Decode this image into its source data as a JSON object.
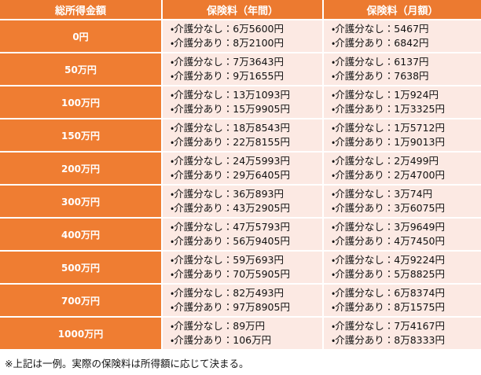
{
  "table": {
    "header": [
      "総所得金額",
      "保険料（年間）",
      "保険料（月額）"
    ],
    "rows": [
      [
        "0円",
        [
          "・介護分なし：6万5600円",
          "・介護分あり：8万2100円"
        ],
        [
          "・介護分なし：5467円",
          "・介護分あり：6842円"
        ]
      ],
      [
        "50万円",
        [
          "・介護分なし：7万3643円",
          "・介護分あり：9万1655円"
        ],
        [
          "・介護分なし：6137円",
          "・介護分あり：7638円"
        ]
      ],
      [
        "100万円",
        [
          "・介護分なし：13万1093円",
          "・介護分あり：15万9905円"
        ],
        [
          "・介護分なし：1万924円",
          "・介護分あり：1万3325円"
        ]
      ],
      [
        "150万円",
        [
          "・介護分なし：18万8543円",
          "・介護分あり：22万8155円"
        ],
        [
          "・介護分なし：1万5712円",
          "・介護分あり：1万9013円"
        ]
      ],
      [
        "200万円",
        [
          "・介護分なし：24万5993円",
          "・介護分あり：29万6405円"
        ],
        [
          "・介護分なし：2万499円",
          "・介護分あり：2万4700円"
        ]
      ],
      [
        "300万円",
        [
          "・介護分なし：36万893円",
          "・介護分あり：43万2905円"
        ],
        [
          "・介護分なし：3万74円",
          "・介護分あり：3万6075円"
        ]
      ],
      [
        "400万円",
        [
          "・介護分なし：47万5793円",
          "・介護分あり：56万9405円"
        ],
        [
          "・介護分なし：3万9649円",
          "・介護分あり：4万7450円"
        ]
      ],
      [
        "500万円",
        [
          "・介護分なし：59万693円",
          "・介護分あり：70万5905円"
        ],
        [
          "・介護分なし：4万9224円",
          "・介護分あり：5万8825円"
        ]
      ],
      [
        "700万円",
        [
          "・介護分なし：82万493円",
          "・介護分あり：97万8905円"
        ],
        [
          "・介護分なし：6万8374円",
          "・介護分あり：8万1575円"
        ]
      ],
      [
        "1000万円",
        [
          "・介護分なし：89万円",
          "・介護分あり：106万円"
        ],
        [
          "・介護分なし：7万4167円",
          "・介護分あり：8万8333円"
        ]
      ]
    ]
  },
  "note": "※上記は一例。実際の保険料は所得額に応じて決まる。"
}
